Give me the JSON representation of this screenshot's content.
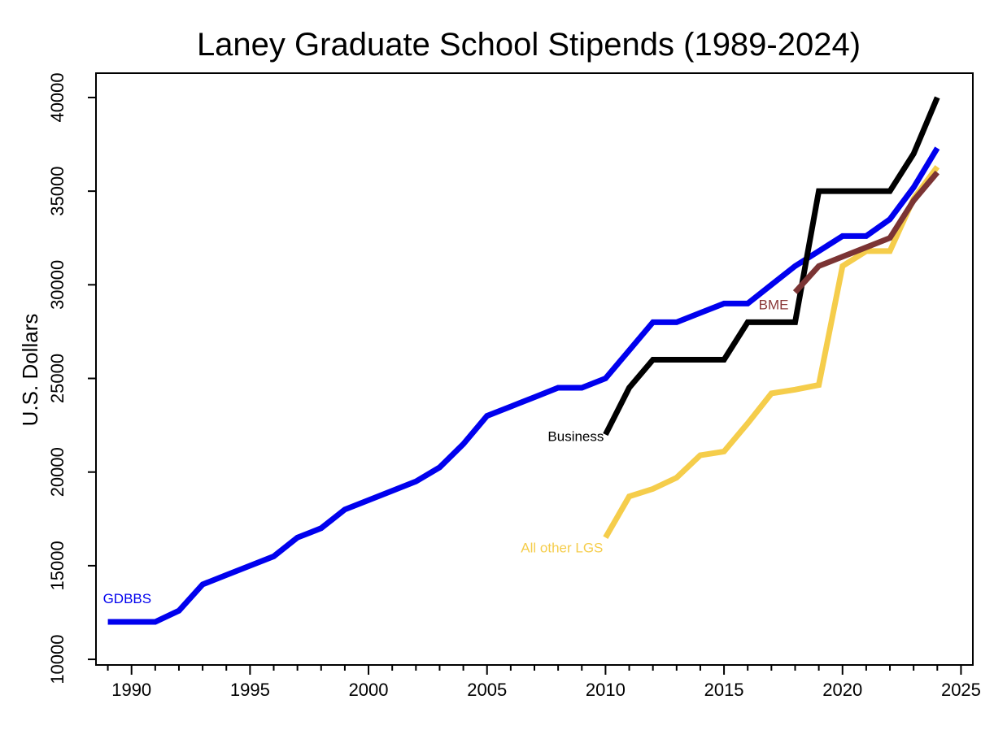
{
  "chart_data": {
    "type": "line",
    "title": "Laney Graduate School Stipends (1989-2024)",
    "xlabel": "",
    "ylabel": "U.S. Dollars",
    "xlim": [
      1988.5,
      2025.5
    ],
    "ylim": [
      9700,
      41300
    ],
    "x_ticks": [
      1990,
      1995,
      2000,
      2005,
      2010,
      2015,
      2020,
      2025
    ],
    "y_ticks": [
      10000,
      15000,
      20000,
      25000,
      30000,
      35000,
      40000
    ],
    "grid": false,
    "legend": "none (direct labels)",
    "series": [
      {
        "name": "GDBBS",
        "color": "#0000ee",
        "label_color": "#0000ee",
        "x": [
          1989,
          1990,
          1991,
          1992,
          1993,
          1994,
          1995,
          1996,
          1997,
          1998,
          1999,
          2000,
          2001,
          2002,
          2003,
          2004,
          2005,
          2006,
          2007,
          2008,
          2009,
          2010,
          2011,
          2012,
          2013,
          2014,
          2015,
          2016,
          2017,
          2018,
          2019,
          2020,
          2021,
          2022,
          2023,
          2024
        ],
        "values": [
          12000,
          12000,
          12000,
          12600,
          14000,
          14500,
          15000,
          15500,
          16500,
          17000,
          18000,
          18500,
          19000,
          19500,
          20250,
          21500,
          23000,
          23500,
          24000,
          24500,
          24500,
          25000,
          26500,
          28000,
          28000,
          28500,
          29000,
          29000,
          30000,
          31000,
          31800,
          32600,
          32600,
          33500,
          35200,
          37300
        ]
      },
      {
        "name": "Business",
        "color": "#000000",
        "label_color": "#000000",
        "x": [
          2010,
          2011,
          2012,
          2013,
          2014,
          2015,
          2016,
          2017,
          2018,
          2019,
          2020,
          2021,
          2022,
          2023,
          2024
        ],
        "values": [
          22000,
          24500,
          26000,
          26000,
          26000,
          26000,
          28000,
          28000,
          28000,
          35000,
          35000,
          35000,
          35000,
          37000,
          40000
        ]
      },
      {
        "name": "All other LGS",
        "color": "#f5cd4b",
        "label_color": "#f5cd4b",
        "x": [
          2010,
          2011,
          2012,
          2013,
          2014,
          2015,
          2016,
          2017,
          2018,
          2019,
          2020,
          2021,
          2022,
          2023,
          2024
        ],
        "values": [
          16500,
          18700,
          19100,
          19700,
          20900,
          21100,
          22600,
          24200,
          24400,
          24650,
          31000,
          31800,
          31800,
          34600,
          36300
        ]
      },
      {
        "name": "BME",
        "color": "#7b3434",
        "label_color": "#8b3a3a",
        "x": [
          2018,
          2019,
          2020,
          2021,
          2022,
          2023,
          2024
        ],
        "values": [
          29600,
          31000,
          31500,
          32000,
          32500,
          34500,
          36000
        ]
      }
    ]
  }
}
